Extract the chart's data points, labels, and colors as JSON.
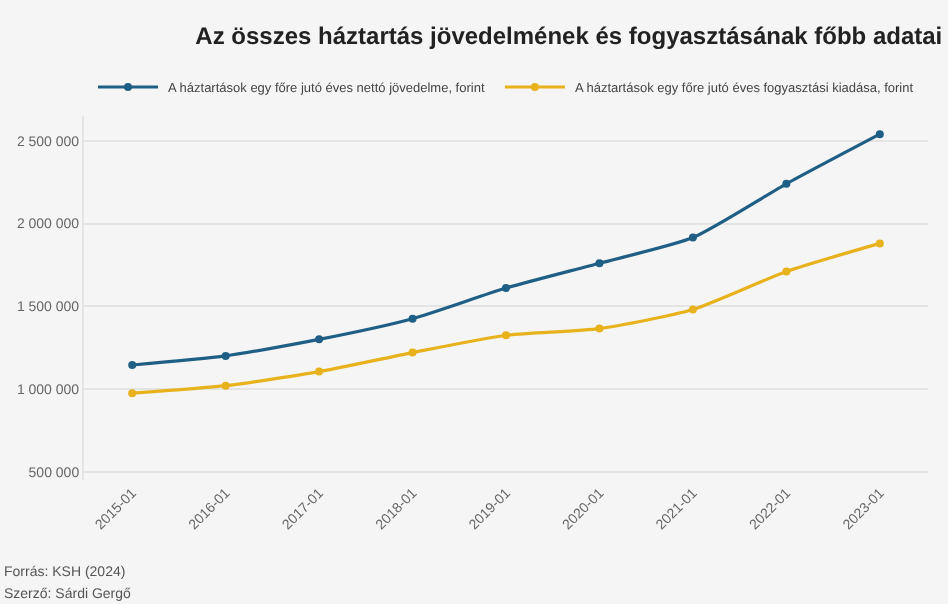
{
  "chart_data": {
    "type": "line",
    "title": "Az összes háztartás jövedelmének és fogyasztásának főbb adatai",
    "categories": [
      "2015-01",
      "2016-01",
      "2017-01",
      "2018-01",
      "2019-01",
      "2020-01",
      "2021-01",
      "2022-01",
      "2023-01"
    ],
    "series": [
      {
        "name": "A háztartások egy főre jutó éves nettó jövedelme, forint",
        "color": "#1f5f85",
        "values": [
          1145000,
          1200000,
          1300000,
          1425000,
          1610000,
          1760000,
          1915000,
          2240000,
          2540000
        ]
      },
      {
        "name": "A háztartások egy főre jutó éves fogyasztási kiadása, forint",
        "color": "#e8b21c",
        "values": [
          975000,
          1020000,
          1105000,
          1220000,
          1325000,
          1365000,
          1480000,
          1710000,
          1880000
        ]
      }
    ],
    "ylim": [
      450000,
      2650000
    ],
    "yticks": [
      {
        "value": 500000,
        "label": "500 000"
      },
      {
        "value": 1000000,
        "label": "1 000 000"
      },
      {
        "value": 1500000,
        "label": "1 500 000"
      },
      {
        "value": 2000000,
        "label": "2 000 000"
      },
      {
        "value": 2500000,
        "label": "2 500 000"
      }
    ],
    "grid": "y",
    "legend": "top",
    "marker": "circle",
    "line_style": "solid",
    "annotations": [
      "Forrás: KSH (2024)",
      "Szerző: Sárdi Gergő"
    ]
  }
}
